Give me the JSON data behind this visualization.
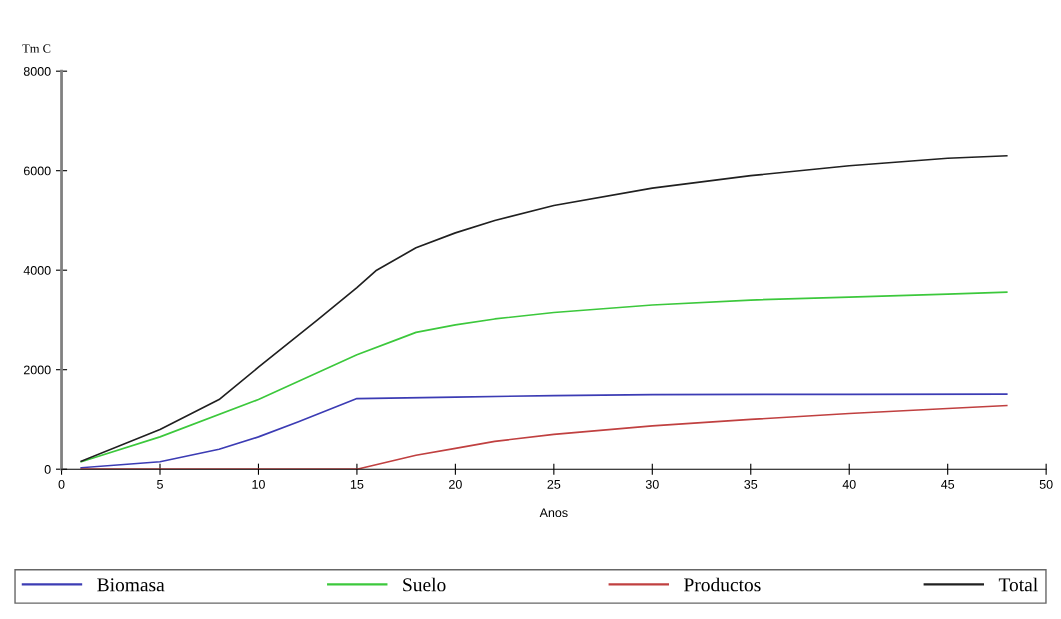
{
  "chart_data": {
    "type": "line",
    "ylabel": "Tm C",
    "xlabel": "Anos",
    "xlim": [
      0,
      50
    ],
    "xticks": [
      0,
      5,
      10,
      15,
      20,
      25,
      30,
      35,
      40,
      45,
      50
    ],
    "ylim": [
      0,
      8000
    ],
    "yticks": [
      0,
      2000,
      4000,
      6000,
      8000
    ],
    "grid": false,
    "legend": "bottom",
    "marker": "none",
    "line_style": "solid",
    "series": [
      {
        "name": "Biomasa",
        "color": "#3c3cb4",
        "x": [
          1,
          3,
          5,
          8,
          10,
          12,
          15,
          20,
          25,
          30,
          40,
          48
        ],
        "values": [
          30,
          90,
          150,
          400,
          650,
          950,
          1420,
          1450,
          1480,
          1500,
          1505,
          1510
        ]
      },
      {
        "name": "Suelo",
        "color": "#3cc83c",
        "x": [
          1,
          5,
          10,
          15,
          17,
          18,
          20,
          22,
          25,
          30,
          35,
          40,
          45,
          48
        ],
        "values": [
          150,
          650,
          1400,
          2300,
          2600,
          2750,
          2900,
          3020,
          3150,
          3300,
          3400,
          3460,
          3520,
          3560
        ]
      },
      {
        "name": "Productos",
        "color": "#c04040",
        "x": [
          1,
          15,
          18,
          20,
          22,
          25,
          30,
          35,
          40,
          45,
          48
        ],
        "values": [
          0,
          0,
          280,
          420,
          560,
          700,
          870,
          1000,
          1120,
          1220,
          1280
        ]
      },
      {
        "name": "Total",
        "color": "#202020",
        "x": [
          1,
          5,
          8,
          10,
          13,
          15,
          16,
          18,
          20,
          22,
          25,
          30,
          35,
          40,
          45,
          48
        ],
        "values": [
          160,
          800,
          1400,
          2050,
          3000,
          3650,
          4000,
          4450,
          4750,
          5000,
          5300,
          5650,
          5900,
          6100,
          6250,
          6300
        ]
      }
    ]
  }
}
